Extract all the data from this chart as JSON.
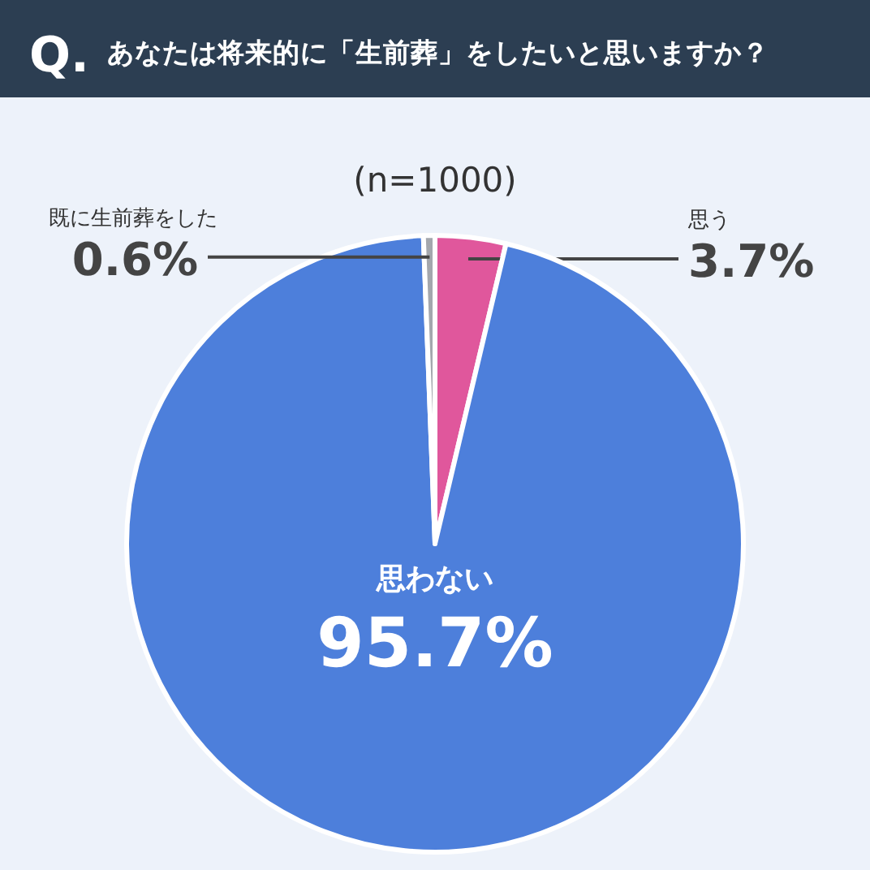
{
  "chart_data": {
    "type": "pie",
    "title": "あなたは将来的に「生前葬」をしたいと思いますか？",
    "subtitle": "(n=1000)",
    "annotations": [
      "Q."
    ],
    "categories": [
      "思う",
      "思わない",
      "既に生前葬をした"
    ],
    "values": [
      3.7,
      95.7,
      0.6
    ],
    "colors": [
      "#e0579c",
      "#4d7fdb",
      "#a4a7ad"
    ],
    "value_labels": [
      "3.7%",
      "95.7%",
      "0.6%"
    ]
  }
}
